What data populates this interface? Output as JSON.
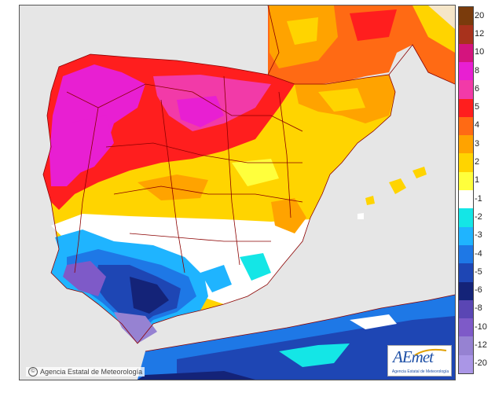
{
  "credit": "Agencia Estatal de Meteorología",
  "logo": {
    "mark": "AEmet",
    "subtitle": "Agencia Estatal de Meteorología"
  },
  "legend": {
    "labels": [
      "20",
      "12",
      "10",
      "8",
      "6",
      "5",
      "4",
      "3",
      "2",
      "1",
      "-1",
      "-2",
      "-3",
      "-4",
      "-5",
      "-6",
      "-8",
      "-10",
      "-12",
      "-20"
    ],
    "colors": [
      "#7a3b0c",
      "#a8321c",
      "#d4147e",
      "#e81fd2",
      "#f23aa8",
      "#ff1e1e",
      "#ff6a14",
      "#ffa300",
      "#ffd400",
      "#ffff3c",
      "#ffffff",
      "#14e6e6",
      "#1fb4ff",
      "#1e78e6",
      "#1e46b4",
      "#142378",
      "#5a46b4",
      "#7e5ac8",
      "#9682d2",
      "#aa96e6"
    ]
  },
  "colors": {
    "sea": "#e6e6e6",
    "border": "#8b0000"
  },
  "icons": {
    "copyright": "copyright-icon"
  }
}
